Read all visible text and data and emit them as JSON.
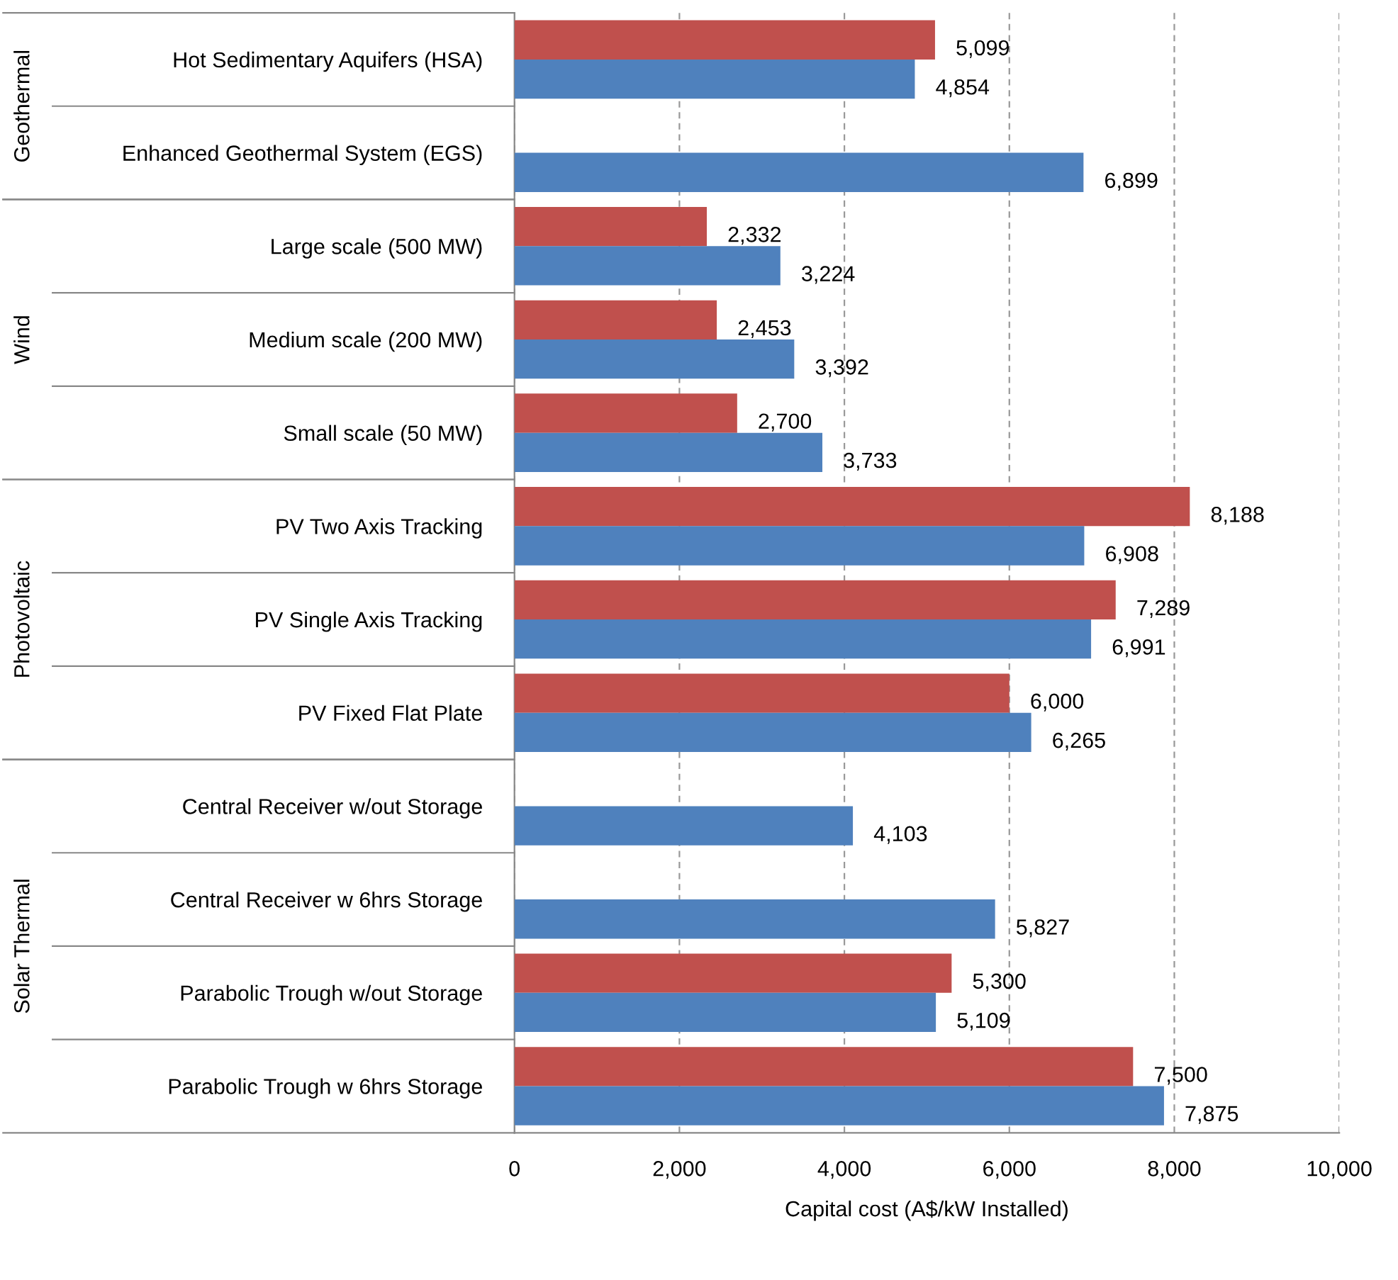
{
  "chart_data": {
    "type": "bar",
    "orientation": "horizontal",
    "categories": [
      "Hot Sedimentary Aquifers (HSA)",
      "Enhanced Geothermal System (EGS)",
      "Large scale (500 MW)",
      "Medium scale (200 MW)",
      "Small scale (50 MW)",
      "PV Two Axis Tracking",
      "PV Single Axis Tracking",
      "PV Fixed Flat Plate",
      "Central Receiver w/out Storage",
      "Central Receiver w 6hrs Storage",
      "Parabolic Trough w/out Storage",
      "Parabolic Trough w 6hrs Storage"
    ],
    "series": [
      {
        "color": "#c0504d",
        "values": [
          5099,
          null,
          2332,
          2453,
          2700,
          8188,
          7289,
          6000,
          null,
          null,
          5300,
          7500
        ],
        "value_labels": [
          "5,099",
          null,
          "2,332",
          "2,453",
          "2,700",
          "8,188",
          "7,289",
          "6,000",
          null,
          null,
          "5,300",
          "7,500"
        ]
      },
      {
        "color": "#4f81bd",
        "values": [
          4854,
          6899,
          3224,
          3392,
          3733,
          6908,
          6991,
          6265,
          4103,
          5827,
          5109,
          7875
        ],
        "value_labels": [
          "4,854",
          "6,899",
          "3,224",
          "3,392",
          "3,733",
          "6,908",
          "6,991",
          "6,265",
          "4,103",
          "5,827",
          "5,109",
          "7,875"
        ]
      }
    ],
    "xlabel": "Capital cost (A$/kW Installed)",
    "xlim": [
      0,
      10000
    ],
    "xticks": [
      0,
      {
        "value": 2000,
        "label": "2,000"
      },
      {
        "value": 4000,
        "label": "4,000"
      },
      {
        "value": 6000,
        "label": "6,000"
      },
      {
        "value": 8000,
        "label": "8,000"
      },
      {
        "value": 10000,
        "label": "10,000"
      }
    ],
    "grid": "x",
    "annotations": [
      "Geothermal",
      "Wind",
      "Photovoltaic",
      "Solar Thermal"
    ]
  }
}
